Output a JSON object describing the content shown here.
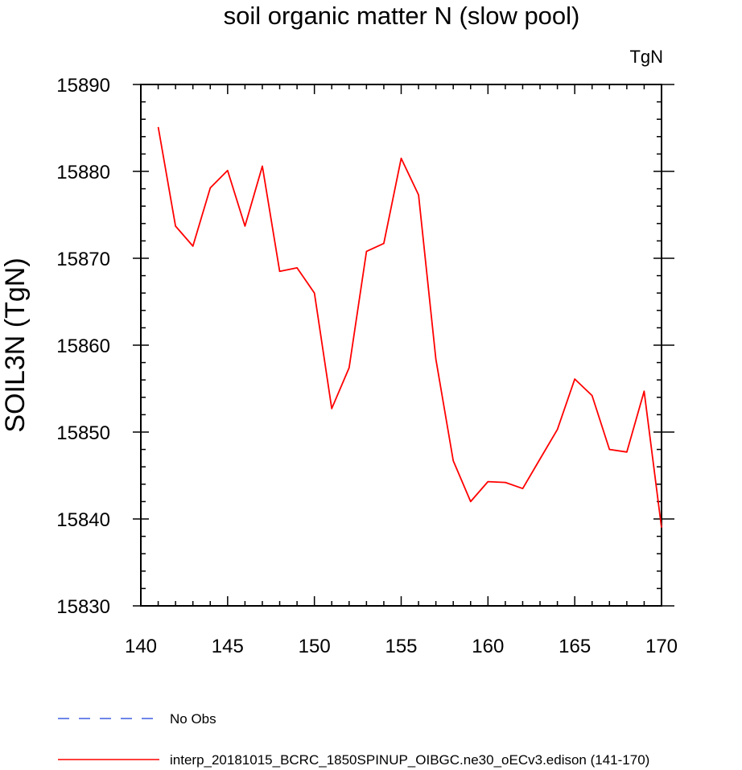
{
  "chart_data": {
    "type": "line",
    "title": "soil organic matter N (slow pool)",
    "units_label": "TgN",
    "ylabel": "SOIL3N  (TgN)",
    "xlabel": "",
    "xlim": [
      140,
      170
    ],
    "ylim": [
      15830,
      15890
    ],
    "x_ticks": [
      140,
      145,
      150,
      155,
      160,
      165,
      170
    ],
    "y_ticks": [
      15830,
      15840,
      15850,
      15860,
      15870,
      15880,
      15890
    ],
    "x_tick_labels": [
      "140",
      "145",
      "150",
      "155",
      "160",
      "165",
      "170"
    ],
    "y_tick_labels": [
      "15830",
      "15840",
      "15850",
      "15860",
      "15870",
      "15880",
      "15890"
    ],
    "grid": false,
    "legend_position": "bottom",
    "series": [
      {
        "name": "interp_20181015_BCRC_1850SPINUP_OIBGC.ne30_oECv3.edison (141-170)",
        "color": "#ff0000",
        "style": "solid",
        "x": [
          141,
          142,
          143,
          144,
          145,
          146,
          147,
          148,
          149,
          150,
          151,
          152,
          153,
          154,
          155,
          156,
          157,
          158,
          159,
          160,
          161,
          162,
          163,
          164,
          165,
          166,
          167,
          168,
          169,
          170
        ],
        "y": [
          15885.1,
          15873.7,
          15871.4,
          15878.1,
          15880.1,
          15873.7,
          15880.6,
          15868.5,
          15868.9,
          15866.0,
          15852.7,
          15857.4,
          15870.8,
          15871.7,
          15881.5,
          15877.3,
          15858.4,
          15846.7,
          15842.0,
          15844.3,
          15844.2,
          15843.5,
          15846.9,
          15850.3,
          15856.1,
          15854.2,
          15848.0,
          15847.7,
          15854.7,
          15839.0
        ]
      },
      {
        "name": "No Obs",
        "color": "#3f5fe0",
        "style": "dashed",
        "x": [],
        "y": []
      }
    ]
  }
}
